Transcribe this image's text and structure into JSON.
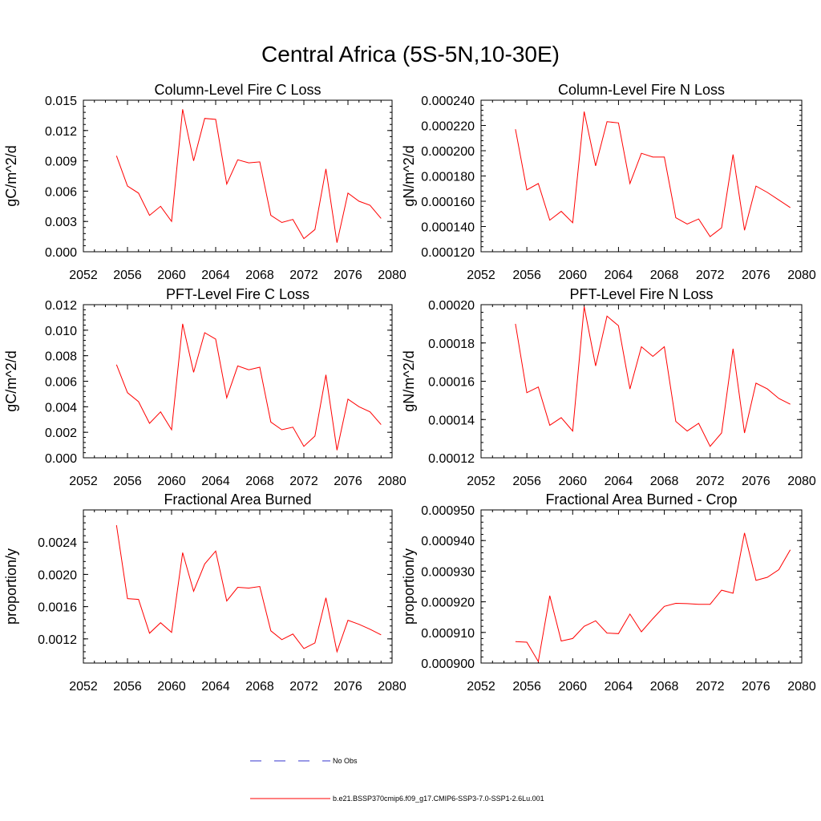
{
  "page_title": "Central Africa (5S-5N,10-30E)",
  "legend": {
    "placement": "bottom-center",
    "entries": [
      {
        "label": "No Obs",
        "color": "#3333cc",
        "style": "dashed"
      },
      {
        "label": "b.e21.BSSP370cmip6.f09_g17.CMIP6-SSP3-7.0-SSP1-2.6Lu.001",
        "color": "#ff0000",
        "style": "solid"
      }
    ]
  },
  "chart_data": [
    {
      "type": "line",
      "title": "Column-Level Fire C Loss",
      "ylabel": "gC/m^2/d",
      "xlim": [
        2052,
        2080
      ],
      "ylim": [
        0,
        0.015
      ],
      "x_ticks": [
        "2052",
        "2056",
        "2060",
        "2064",
        "2068",
        "2072",
        "2076",
        "2080"
      ],
      "y_ticks": [
        "0.000",
        "0.003",
        "0.006",
        "0.009",
        "0.012",
        "0.015"
      ],
      "series": [
        {
          "color": "#ff0000",
          "x": [
            2055,
            2056,
            2057,
            2058,
            2059,
            2060,
            2061,
            2062,
            2063,
            2064,
            2065,
            2066,
            2067,
            2068,
            2069,
            2070,
            2071,
            2072,
            2073,
            2074,
            2075,
            2076,
            2077,
            2078,
            2079
          ],
          "values": [
            0.0095,
            0.0065,
            0.0058,
            0.0036,
            0.0045,
            0.003,
            0.0141,
            0.009,
            0.0132,
            0.0131,
            0.0067,
            0.0091,
            0.0088,
            0.0089,
            0.0036,
            0.0029,
            0.0032,
            0.0013,
            0.0022,
            0.0082,
            0.0009,
            0.0058,
            0.005,
            0.0046,
            0.0033
          ]
        }
      ]
    },
    {
      "type": "line",
      "title": "Column-Level Fire N Loss",
      "ylabel": "gN/m^2/d",
      "xlim": [
        2052,
        2080
      ],
      "ylim": [
        0.00012,
        0.00024
      ],
      "x_ticks": [
        "2052",
        "2056",
        "2060",
        "2064",
        "2068",
        "2072",
        "2076",
        "2080"
      ],
      "y_ticks": [
        "0.000120",
        "0.000140",
        "0.000160",
        "0.000180",
        "0.000200",
        "0.000220",
        "0.000240"
      ],
      "series": [
        {
          "color": "#ff0000",
          "x": [
            2055,
            2056,
            2057,
            2058,
            2059,
            2060,
            2061,
            2062,
            2063,
            2064,
            2065,
            2066,
            2067,
            2068,
            2069,
            2070,
            2071,
            2072,
            2073,
            2074,
            2075,
            2076,
            2077,
            2078,
            2079
          ],
          "values": [
            0.000217,
            0.000169,
            0.000174,
            0.000145,
            0.000152,
            0.000143,
            0.000231,
            0.000188,
            0.000223,
            0.000222,
            0.000174,
            0.000198,
            0.000195,
            0.000195,
            0.000147,
            0.000142,
            0.000146,
            0.000132,
            0.000139,
            0.000197,
            0.000137,
            0.000172,
            0.000167,
            0.000161,
            0.000155
          ]
        }
      ]
    },
    {
      "type": "line",
      "title": "PFT-Level Fire C Loss",
      "ylabel": "gC/m^2/d",
      "xlim": [
        2052,
        2080
      ],
      "ylim": [
        0,
        0.012
      ],
      "x_ticks": [
        "2052",
        "2056",
        "2060",
        "2064",
        "2068",
        "2072",
        "2076",
        "2080"
      ],
      "y_ticks": [
        "0.000",
        "0.002",
        "0.004",
        "0.006",
        "0.008",
        "0.010",
        "0.012"
      ],
      "series": [
        {
          "color": "#ff0000",
          "x": [
            2055,
            2056,
            2057,
            2058,
            2059,
            2060,
            2061,
            2062,
            2063,
            2064,
            2065,
            2066,
            2067,
            2068,
            2069,
            2070,
            2071,
            2072,
            2073,
            2074,
            2075,
            2076,
            2077,
            2078,
            2079
          ],
          "values": [
            0.0073,
            0.0051,
            0.0044,
            0.0027,
            0.0036,
            0.0022,
            0.0105,
            0.0067,
            0.0098,
            0.0093,
            0.0047,
            0.0072,
            0.0069,
            0.0071,
            0.0028,
            0.0022,
            0.0024,
            0.0009,
            0.0017,
            0.0065,
            0.0006,
            0.0046,
            0.004,
            0.0036,
            0.0026
          ]
        }
      ]
    },
    {
      "type": "line",
      "title": "PFT-Level Fire N Loss",
      "ylabel": "gN/m^2/d",
      "xlim": [
        2052,
        2080
      ],
      "ylim": [
        0.00012,
        0.0002
      ],
      "x_ticks": [
        "2052",
        "2056",
        "2060",
        "2064",
        "2068",
        "2072",
        "2076",
        "2080"
      ],
      "y_ticks": [
        "0.00012",
        "0.00014",
        "0.00016",
        "0.00018",
        "0.00020"
      ],
      "series": [
        {
          "color": "#ff0000",
          "x": [
            2055,
            2056,
            2057,
            2058,
            2059,
            2060,
            2061,
            2062,
            2063,
            2064,
            2065,
            2066,
            2067,
            2068,
            2069,
            2070,
            2071,
            2072,
            2073,
            2074,
            2075,
            2076,
            2077,
            2078,
            2079
          ],
          "values": [
            0.00019,
            0.000154,
            0.000157,
            0.000137,
            0.000141,
            0.000134,
            0.000199,
            0.000168,
            0.000194,
            0.000189,
            0.000156,
            0.000178,
            0.000173,
            0.000178,
            0.000139,
            0.000134,
            0.000138,
            0.000126,
            0.000133,
            0.000177,
            0.000133,
            0.000159,
            0.000156,
            0.000151,
            0.000148
          ]
        }
      ]
    },
    {
      "type": "line",
      "title": "Fractional Area Burned",
      "ylabel": "proportion/y",
      "xlim": [
        2052,
        2080
      ],
      "ylim": [
        0.0009,
        0.0028
      ],
      "x_ticks": [
        "2052",
        "2056",
        "2060",
        "2064",
        "2068",
        "2072",
        "2076",
        "2080"
      ],
      "y_ticks": [
        "0.0012",
        "0.0016",
        "0.0020",
        "0.0024"
      ],
      "y_tick_values": [
        0.0012,
        0.0016,
        0.002,
        0.0024
      ],
      "series": [
        {
          "color": "#ff0000",
          "x": [
            2055,
            2056,
            2057,
            2058,
            2059,
            2060,
            2061,
            2062,
            2063,
            2064,
            2065,
            2066,
            2067,
            2068,
            2069,
            2070,
            2071,
            2072,
            2073,
            2074,
            2075,
            2076,
            2077,
            2078,
            2079
          ],
          "values": [
            0.00261,
            0.0017,
            0.00169,
            0.00127,
            0.0014,
            0.00128,
            0.00227,
            0.00179,
            0.00213,
            0.00229,
            0.00167,
            0.00184,
            0.00183,
            0.00185,
            0.0013,
            0.00119,
            0.00126,
            0.00108,
            0.00115,
            0.00171,
            0.00104,
            0.00143,
            0.00138,
            0.00132,
            0.00125
          ]
        }
      ]
    },
    {
      "type": "line",
      "title": "Fractional Area Burned - Crop",
      "ylabel": "proportion/y",
      "xlim": [
        2052,
        2080
      ],
      "ylim": [
        0.0009,
        0.00095
      ],
      "x_ticks": [
        "2052",
        "2056",
        "2060",
        "2064",
        "2068",
        "2072",
        "2076",
        "2080"
      ],
      "y_ticks": [
        "0.000900",
        "0.000910",
        "0.000920",
        "0.000930",
        "0.000940",
        "0.000950"
      ],
      "series": [
        {
          "color": "#ff0000",
          "x": [
            2055,
            2056,
            2057,
            2058,
            2059,
            2060,
            2061,
            2062,
            2063,
            2064,
            2065,
            2066,
            2067,
            2068,
            2069,
            2070,
            2071,
            2072,
            2073,
            2074,
            2075,
            2076,
            2077,
            2078,
            2079
          ],
          "values": [
            0.000907,
            0.0009068,
            0.0009005,
            0.000922,
            0.0009072,
            0.000908,
            0.000912,
            0.0009138,
            0.0009098,
            0.0009096,
            0.000916,
            0.0009102,
            0.0009145,
            0.0009185,
            0.0009195,
            0.0009194,
            0.0009192,
            0.0009192,
            0.0009238,
            0.0009228,
            0.0009425,
            0.000927,
            0.000928,
            0.0009305,
            0.000937
          ]
        }
      ]
    }
  ]
}
